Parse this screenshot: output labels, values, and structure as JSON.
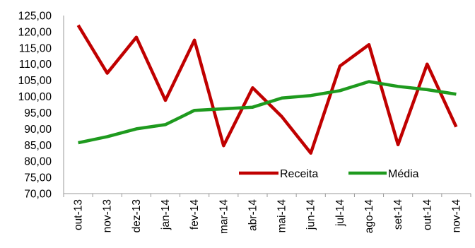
{
  "chart_data": {
    "type": "line",
    "title": "",
    "xlabel": "",
    "ylabel": "",
    "ylim": [
      70,
      125
    ],
    "yticks": [
      "70,00",
      "75,00",
      "80,00",
      "85,00",
      "90,00",
      "95,00",
      "100,00",
      "105,00",
      "110,00",
      "115,00",
      "120,00",
      "125,00"
    ],
    "categories": [
      "out-13",
      "nov-13",
      "dez-13",
      "jan-14",
      "fev-14",
      "mar-14",
      "abr-14",
      "mai-14",
      "jun-14",
      "jul-14",
      "ago-14",
      "set-14",
      "out-14",
      "nov-14"
    ],
    "series": [
      {
        "name": "Receita",
        "color": "#C00000",
        "values": [
          122.0,
          107.2,
          118.3,
          98.8,
          117.4,
          84.8,
          102.7,
          93.8,
          82.5,
          109.4,
          116.0,
          85.1,
          110.0,
          90.6
        ]
      },
      {
        "name": "Média",
        "color": "#1E9A1E",
        "values": [
          85.7,
          87.6,
          90.0,
          91.3,
          95.7,
          96.2,
          96.7,
          99.5,
          100.3,
          101.8,
          104.6,
          103.1,
          102.1,
          100.7
        ]
      }
    ],
    "grid": false,
    "legend": "bottom-right"
  }
}
